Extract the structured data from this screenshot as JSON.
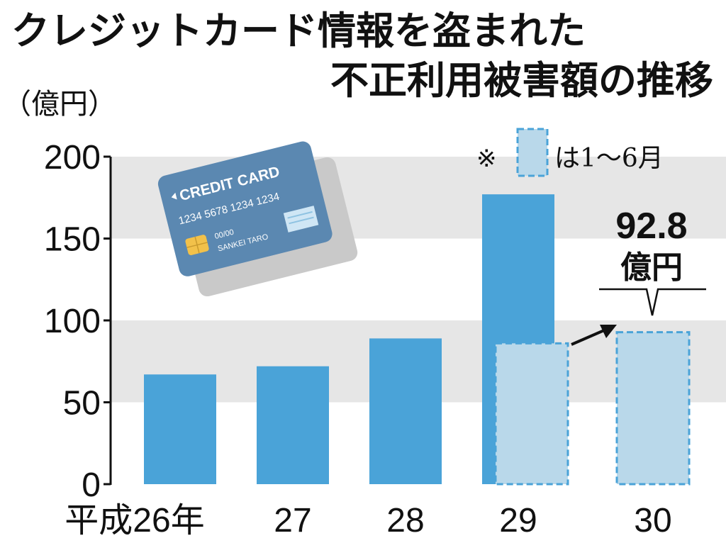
{
  "colors": {
    "bar": "#4aa3d8",
    "bar_partial_fill": "#b9d8ea",
    "bar_partial_stroke": "#4aa3d8",
    "band": "#e6e6e6",
    "axis": "#111111",
    "card_body": "#5b88b1",
    "card_shadow": "#c9c9c9",
    "card_chip": "#f2c14a",
    "card_stripe": "#cfe6f5"
  },
  "chart_data": {
    "type": "bar",
    "title_lines": [
      "クレジットカード情報を盗まれた",
      "不正利用被害額の推移"
    ],
    "unit_label": "（億円）",
    "categories": [
      "平成26年",
      "27",
      "28",
      "29",
      "30"
    ],
    "series": [
      {
        "values": [
          67,
          72,
          89,
          177,
          null
        ]
      },
      {
        "name": "1〜6月",
        "values": [
          null,
          null,
          null,
          86,
          92.8
        ]
      }
    ],
    "ylim": [
      0,
      200
    ],
    "yticks": [
      0,
      50,
      100,
      150,
      200
    ],
    "bands": [
      [
        50,
        100
      ],
      [
        150,
        200
      ]
    ],
    "legend": {
      "symbol": "※",
      "text": "は1〜6月",
      "position": "top-right"
    },
    "annotation": {
      "value": "92.8",
      "unit": "億円"
    }
  },
  "card": {
    "brand": "CREDIT CARD",
    "number": "1234 5678 1234 1234",
    "expiry": "00/00",
    "holder": "SANKEI TARO"
  }
}
